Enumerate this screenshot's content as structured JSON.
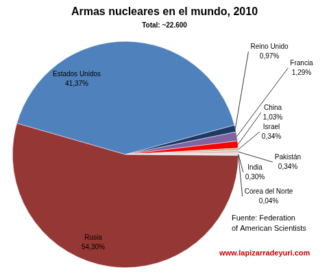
{
  "chart_data": {
    "type": "pie",
    "title": "Armas nucleares en el mundo, 2010",
    "subtitle": "Total: ~22.600",
    "categories": [
      "Estados Unidos",
      "Reino Unido",
      "Francia",
      "China",
      "Israel",
      "Pakistán",
      "India",
      "Corea del Norte",
      "Rusia"
    ],
    "values": [
      41.37,
      0.97,
      1.29,
      1.03,
      0.34,
      0.34,
      0.3,
      0.04,
      54.3
    ],
    "value_labels": [
      "41,37%",
      "0,97%",
      "1,29%",
      "1,03%",
      "0,34%",
      "0,34%",
      "0,30%",
      "0,04%",
      "54,30%"
    ],
    "colors": [
      "#4f81bd",
      "#1f3864",
      "#8064a2",
      "#ff0000",
      "#c4bd97",
      "#e6b9b8",
      "#d9d9d9",
      "#a6a6a6",
      "#953735"
    ],
    "data_labels": true,
    "source": [
      "Fuente: Federation",
      "of American Scientists"
    ],
    "website": "www.lapizarradeyuri.com"
  }
}
